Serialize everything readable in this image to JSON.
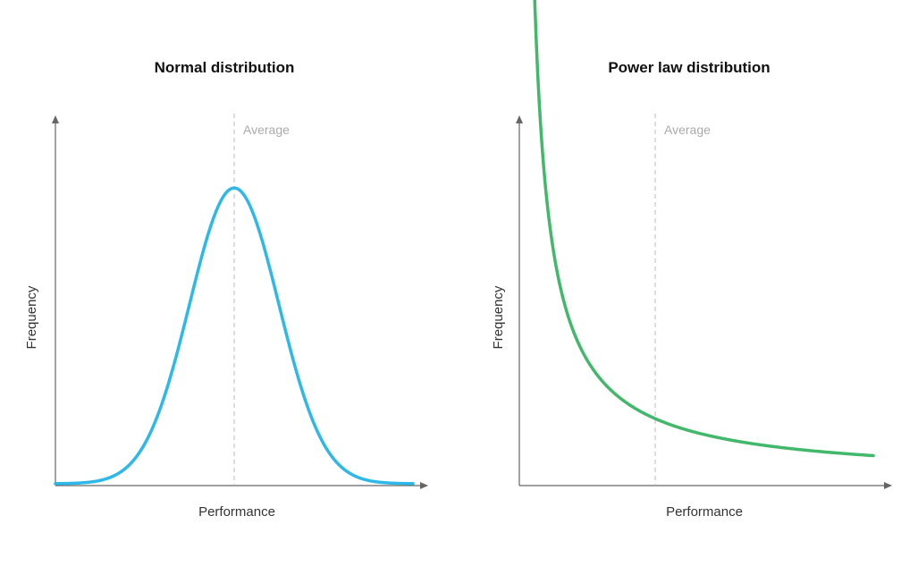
{
  "chart_data": [
    {
      "type": "line",
      "title": "Normal distribution",
      "xlabel": "Performance",
      "ylabel": "Frequency",
      "annotation": "Average",
      "curve": "normal",
      "color": "#2db8e8",
      "mean": 0.5,
      "average_x": 0.5,
      "sd": 0.125,
      "peak": 0.8,
      "baseline": 0.005,
      "xlim": [
        0,
        1
      ],
      "ylim": [
        0,
        1
      ],
      "grid": false
    },
    {
      "type": "line",
      "title": "Power law distribution",
      "xlabel": "Performance",
      "ylabel": "Frequency",
      "annotation": "Average",
      "curve": "power_law",
      "color": "#41b86a",
      "x_start": 0.04,
      "x_end": 0.99,
      "average_x": 0.38,
      "xlim": [
        0,
        1
      ],
      "ylim": [
        0,
        1
      ],
      "grid": false
    }
  ]
}
